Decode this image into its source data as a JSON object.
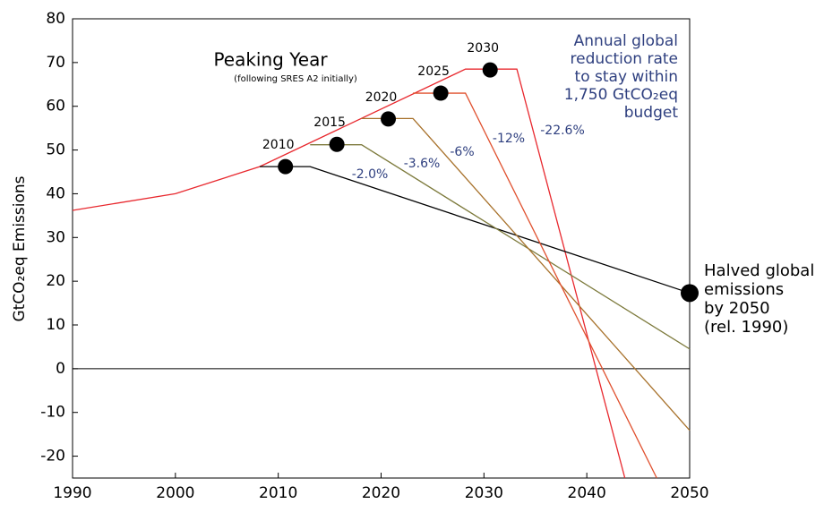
{
  "chart_data": {
    "type": "line",
    "title": "Peaking Year",
    "subtitle": "(following SRES A2 initially)",
    "y_label": "GtCO₂eq Emissions",
    "xlim": [
      1990,
      2050
    ],
    "xticks": [
      1990,
      2000,
      2010,
      2020,
      2030,
      2040,
      2050
    ],
    "ylim": [
      -25,
      80
    ],
    "yticks": [
      -20,
      -10,
      0,
      10,
      20,
      30,
      40,
      50,
      60,
      70,
      80
    ],
    "zero_line": 0,
    "series": [
      {
        "color": "#e8282e",
        "x": [
          1990,
          2000,
          2008.2,
          2028.2,
          2033.2,
          2043.7
        ],
        "values": [
          36.2,
          40,
          46.2,
          68.5,
          68.5,
          -25
        ],
        "label": "-22.6%"
      },
      {
        "color": "#000000",
        "x": [
          2008.2,
          2013.1,
          2050
        ],
        "values": [
          46.2,
          46.2,
          17.3
        ],
        "label": "-2.0%"
      },
      {
        "color": "#7d7a3c",
        "x": [
          2013.1,
          2018.1,
          2050
        ],
        "values": [
          51.2,
          51.2,
          4.5
        ],
        "label": "-3.6%"
      },
      {
        "color": "#a8722c",
        "x": [
          2018.1,
          2023.1,
          2050
        ],
        "values": [
          57.2,
          57.2,
          -14.1
        ],
        "label": "-6%"
      },
      {
        "color": "#e0502e",
        "x": [
          2023.1,
          2028.2,
          2046.8
        ],
        "values": [
          63,
          63,
          -25
        ],
        "label": "-12%"
      }
    ],
    "peaks": {
      "x": [
        2010.7,
        2015.7,
        2020.7,
        2025.8,
        2030.6
      ],
      "values": [
        46.2,
        51.3,
        57.1,
        63,
        68.3
      ],
      "labels": [
        "2010",
        "2015",
        "2020",
        "2025",
        "2030"
      ]
    },
    "endpoint": {
      "x": 2050,
      "value": 17.3,
      "label": [
        "Halved global",
        "emissions",
        "by 2050",
        "(rel. 1990)"
      ]
    },
    "annotation": [
      "Annual global",
      "reduction rate",
      "to stay within",
      "1,750 GtCO₂eq",
      "budget"
    ]
  }
}
